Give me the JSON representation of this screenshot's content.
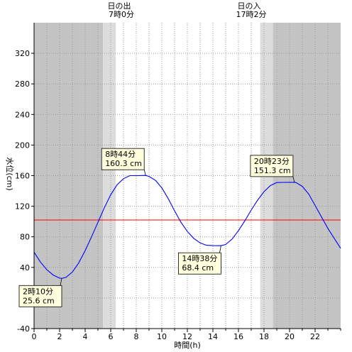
{
  "chart_data": {
    "type": "line",
    "xlabel": "時間(h)",
    "ylabel": "水位(cm)",
    "xlim": [
      0,
      24
    ],
    "ylim": [
      -40,
      360
    ],
    "x_ticks": [
      0,
      2,
      4,
      6,
      8,
      10,
      12,
      14,
      16,
      18,
      20,
      22
    ],
    "y_ticks": [
      -40,
      0,
      40,
      80,
      120,
      160,
      200,
      240,
      280,
      320
    ],
    "grid": true,
    "colors": {
      "night": "#c4c4c4",
      "twilight": "#dcdcdc",
      "day": "#ffffff",
      "curve": "#0000ff",
      "reference_line": "#ff0000",
      "annotation_bg": "#ffffdd"
    },
    "sun": {
      "sunrise": {
        "label": "日の出",
        "time_label": "7時0分",
        "hour": 7.0
      },
      "sunset": {
        "label": "日の入",
        "time_label": "17時2分",
        "hour": 17.0333
      },
      "twilight_morning": [
        5.4,
        6.4
      ],
      "twilight_evening": [
        17.7,
        18.7
      ]
    },
    "reference_level": 102,
    "extrema": [
      {
        "hour": 2.1667,
        "value": 25.6,
        "time_label": "2時10分",
        "value_label": "25.6 cm",
        "kind": "low"
      },
      {
        "hour": 8.7333,
        "value": 160.3,
        "time_label": "8時44分",
        "value_label": "160.3 cm",
        "kind": "high"
      },
      {
        "hour": 14.6333,
        "value": 68.4,
        "time_label": "14時38分",
        "value_label": "68.4 cm",
        "kind": "low"
      },
      {
        "hour": 20.3833,
        "value": 151.3,
        "time_label": "20時23分",
        "value_label": "151.3 cm",
        "kind": "high"
      }
    ],
    "series": [
      {
        "x": [
          0,
          0.5,
          1,
          1.5,
          2,
          2.1667,
          2.5,
          3,
          3.5,
          4,
          4.5,
          5,
          5.5,
          6,
          6.5,
          7,
          7.5,
          8,
          8.5,
          8.7333,
          9,
          9.5,
          10,
          10.5,
          11,
          11.5,
          12,
          12.5,
          13,
          13.5,
          14,
          14.5,
          14.6333,
          15,
          15.5,
          16,
          16.5,
          17,
          17.5,
          18,
          18.5,
          19,
          19.5,
          20,
          20.3833,
          20.5,
          21,
          21.5,
          22,
          22.5,
          23,
          23.5,
          24
        ],
        "y": [
          60,
          47,
          37,
          30,
          26,
          25.6,
          27,
          34,
          46,
          62,
          80,
          99,
          118,
          135,
          148,
          156,
          160,
          160,
          160.2,
          160.3,
          159,
          154,
          144,
          130,
          114,
          99,
          87,
          78,
          72,
          69,
          68.5,
          68.4,
          68.4,
          70,
          77,
          88,
          101,
          115,
          128,
          139,
          147,
          151,
          151.2,
          151.3,
          151.3,
          151,
          146,
          136,
          121,
          106,
          91,
          78,
          65
        ]
      }
    ]
  }
}
